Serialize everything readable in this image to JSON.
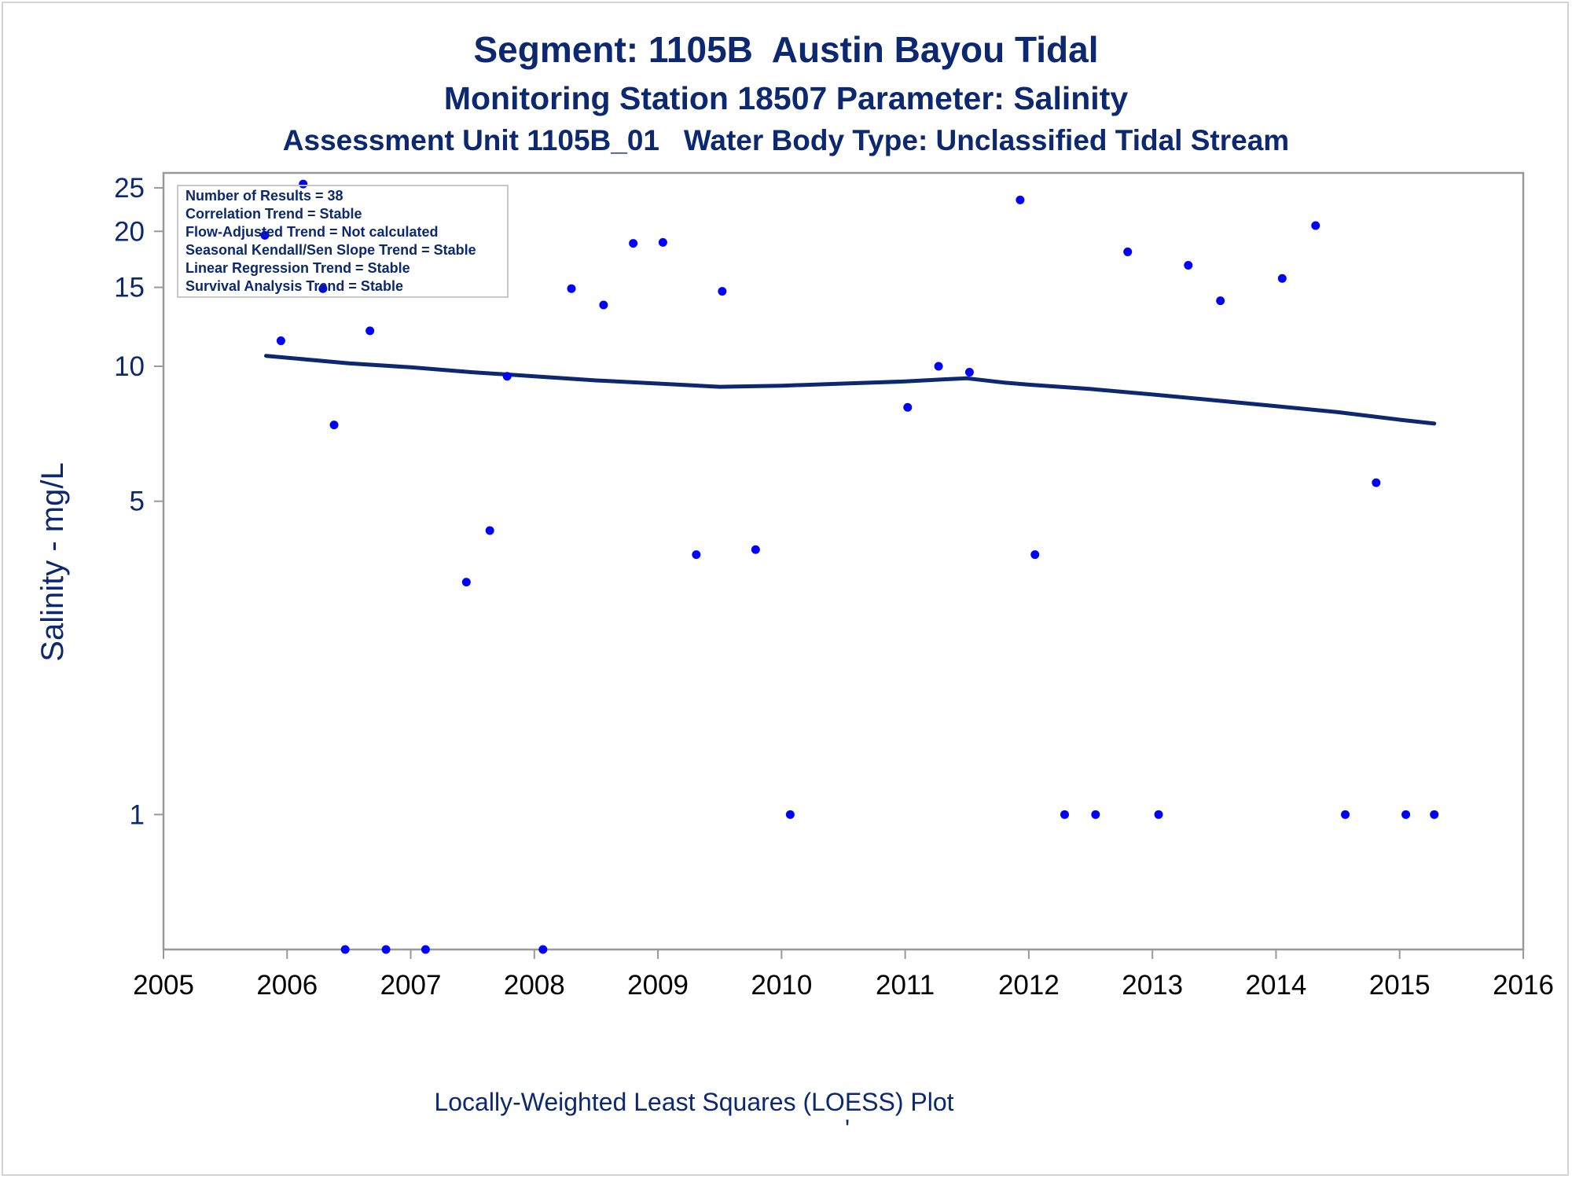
{
  "chart_data": {
    "type": "scatter",
    "title": "Segment: 1105B  Austin Bayou Tidal",
    "subtitle": "Monitoring Station 18507 Parameter: Salinity",
    "subtitle2": "Assessment Unit 1105B_01   Water Body Type: Unclassified Tidal Stream",
    "ylabel": "Salinity - mg/L",
    "xlabel": "",
    "footnote": "Locally-Weighted Least Squares (LOESS) Plot",
    "footnote_mark": "'",
    "x_ticks": [
      "2005",
      "2006",
      "2007",
      "2008",
      "2009",
      "2010",
      "2011",
      "2012",
      "2013",
      "2014",
      "2015",
      "2016"
    ],
    "y_ticks": [
      "1",
      "5",
      "10",
      "15",
      "20",
      "25"
    ],
    "xlim": [
      2005,
      2016
    ],
    "ylim": [
      0.5,
      27
    ],
    "y_scale": "log",
    "grid": false,
    "legend": "none",
    "colors": {
      "points": "#0000ff",
      "loess": "#0b2870",
      "text": "#0b2870",
      "axis": "#999999"
    },
    "stats_box": {
      "position": "top-left",
      "lines": [
        "Number of Results = 38",
        "Correlation Trend = Stable",
        "Flow-Adjusted Trend = Not calculated",
        "Seasonal Kendall/Sen Slope Trend = Stable",
        "Linear Regression Trend = Stable",
        "Survival Analysis Trend = Stable"
      ]
    },
    "series": [
      {
        "kind": "points",
        "x": [
          2005.82,
          2005.95,
          2006.13,
          2006.29,
          2006.38,
          2006.47,
          2006.67,
          2006.8,
          2007.12,
          2007.45,
          2007.64,
          2007.78,
          2008.07,
          2008.3,
          2008.56,
          2008.8,
          2009.04,
          2009.31,
          2009.52,
          2009.79,
          2010.07,
          2011.02,
          2011.27,
          2011.52,
          2011.93,
          2012.05,
          2012.29,
          2012.54,
          2012.8,
          2013.05,
          2013.29,
          2013.55,
          2014.05,
          2014.32,
          2014.56,
          2014.81,
          2015.05,
          2015.28
        ],
        "y": [
          19.6,
          11.4,
          25.5,
          14.9,
          7.4,
          0.5,
          12.0,
          0.5,
          0.5,
          3.3,
          4.3,
          9.5,
          0.5,
          14.9,
          13.7,
          18.8,
          18.9,
          3.8,
          14.7,
          3.9,
          1.0,
          8.1,
          10.0,
          9.7,
          23.5,
          3.8,
          1.0,
          1.0,
          18.0,
          1.0,
          16.8,
          14.0,
          15.7,
          20.6,
          1.0,
          5.5,
          1.0,
          1.0
        ]
      },
      {
        "kind": "loess",
        "x": [
          2005.83,
          2006.5,
          2007.0,
          2007.5,
          2008.0,
          2008.5,
          2009.0,
          2009.5,
          2010.0,
          2010.5,
          2011.0,
          2011.3,
          2011.5,
          2011.8,
          2012.0,
          2012.5,
          2013.0,
          2013.5,
          2014.0,
          2014.5,
          2015.0,
          2015.28
        ],
        "y": [
          10.55,
          10.15,
          9.95,
          9.7,
          9.5,
          9.3,
          9.15,
          9.0,
          9.05,
          9.15,
          9.25,
          9.35,
          9.4,
          9.2,
          9.1,
          8.9,
          8.65,
          8.4,
          8.15,
          7.9,
          7.6,
          7.45
        ]
      }
    ]
  }
}
